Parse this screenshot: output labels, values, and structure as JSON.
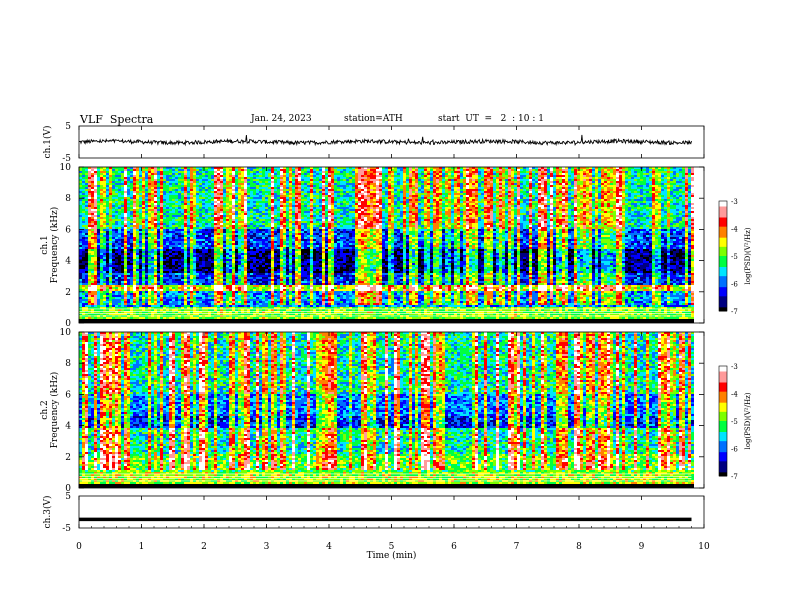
{
  "header": {
    "title": "VLF  Spectra",
    "date": "Jan. 24, 2023",
    "station": "station=ATH",
    "start": "start  UT  =   2  : 10 : 1"
  },
  "chart_data": [
    {
      "type": "line",
      "panel": "ch1-waveform",
      "ylabel": "ch.1(V)",
      "ylim": [
        -5,
        5
      ],
      "yticks": [
        "5",
        "-5"
      ],
      "xlim": [
        0,
        10
      ],
      "approx_level": 0,
      "approx_noise_amplitude": 0.6,
      "color": "#000000"
    },
    {
      "type": "heatmap",
      "panel": "ch1-spectrogram",
      "ylabel": "ch.1\nFrequency (kHz)",
      "ylabel_lines": [
        "ch.1",
        "Frequency (kHz)"
      ],
      "ylim": [
        0,
        10
      ],
      "yticks": [
        "0",
        "2",
        "4",
        "6",
        "8",
        "10"
      ],
      "xlim": [
        0,
        10
      ],
      "data_extent_min": 9.8,
      "band_levels": [
        {
          "f_from": 0,
          "f_to": 0.3,
          "level": -7
        },
        {
          "f_from": 0.3,
          "f_to": 1.0,
          "level": -4.8
        },
        {
          "f_from": 1.0,
          "f_to": 2.0,
          "level": -5.8
        },
        {
          "f_from": 2.0,
          "f_to": 2.4,
          "level": -4.6
        },
        {
          "f_from": 2.4,
          "f_to": 3.2,
          "level": -6.2
        },
        {
          "f_from": 3.2,
          "f_to": 4.8,
          "level": -6.7
        },
        {
          "f_from": 4.8,
          "f_to": 6.0,
          "level": -6.1
        },
        {
          "f_from": 6.0,
          "f_to": 10.0,
          "level": -5.4
        }
      ],
      "colorbar": {
        "label": "log(PSD)(V²/Hz)",
        "range": [
          -7,
          -3
        ],
        "ticks": [
          "-3",
          "-4",
          "-5",
          "-6",
          "-7"
        ]
      }
    },
    {
      "type": "heatmap",
      "panel": "ch2-spectrogram",
      "ylabel": "ch.2\nFrequency (kHz)",
      "ylabel_lines": [
        "ch.2",
        "Frequency (kHz)"
      ],
      "ylim": [
        0,
        10
      ],
      "yticks": [
        "0",
        "2",
        "4",
        "6",
        "8",
        "10"
      ],
      "xlim": [
        0,
        10
      ],
      "data_extent_min": 9.8,
      "band_levels": [
        {
          "f_from": 0,
          "f_to": 0.3,
          "level": -7
        },
        {
          "f_from": 0.3,
          "f_to": 1.0,
          "level": -4.7
        },
        {
          "f_from": 1.0,
          "f_to": 2.2,
          "level": -5.0
        },
        {
          "f_from": 2.2,
          "f_to": 3.8,
          "level": -5.4
        },
        {
          "f_from": 3.8,
          "f_to": 4.6,
          "level": -6.2
        },
        {
          "f_from": 4.6,
          "f_to": 6.0,
          "level": -5.9
        },
        {
          "f_from": 6.0,
          "f_to": 10.0,
          "level": -5.4
        }
      ],
      "colorbar": {
        "label": "log(PSD)(V²/Hz)",
        "range": [
          -7,
          -3
        ],
        "ticks": [
          "-3",
          "-4",
          "-5",
          "-6",
          "-7"
        ]
      }
    },
    {
      "type": "line",
      "panel": "ch3-waveform",
      "ylabel": "ch.3(V)",
      "ylim": [
        -5,
        5
      ],
      "yticks": [
        "5",
        "-5"
      ],
      "xlim": [
        0,
        10
      ],
      "approx_level": -2.3,
      "color": "#000000"
    }
  ],
  "xaxis": {
    "label": "Time  (min)",
    "ticks": [
      "0",
      "1",
      "2",
      "3",
      "4",
      "5",
      "6",
      "7",
      "8",
      "9",
      "10"
    ]
  },
  "colormap": [
    "#ffffff",
    "#ff9a9a",
    "#ff0000",
    "#ff8000",
    "#ffff00",
    "#7cff00",
    "#00ff40",
    "#00e5ff",
    "#0070ff",
    "#0000ff",
    "#000080",
    "#000000"
  ]
}
